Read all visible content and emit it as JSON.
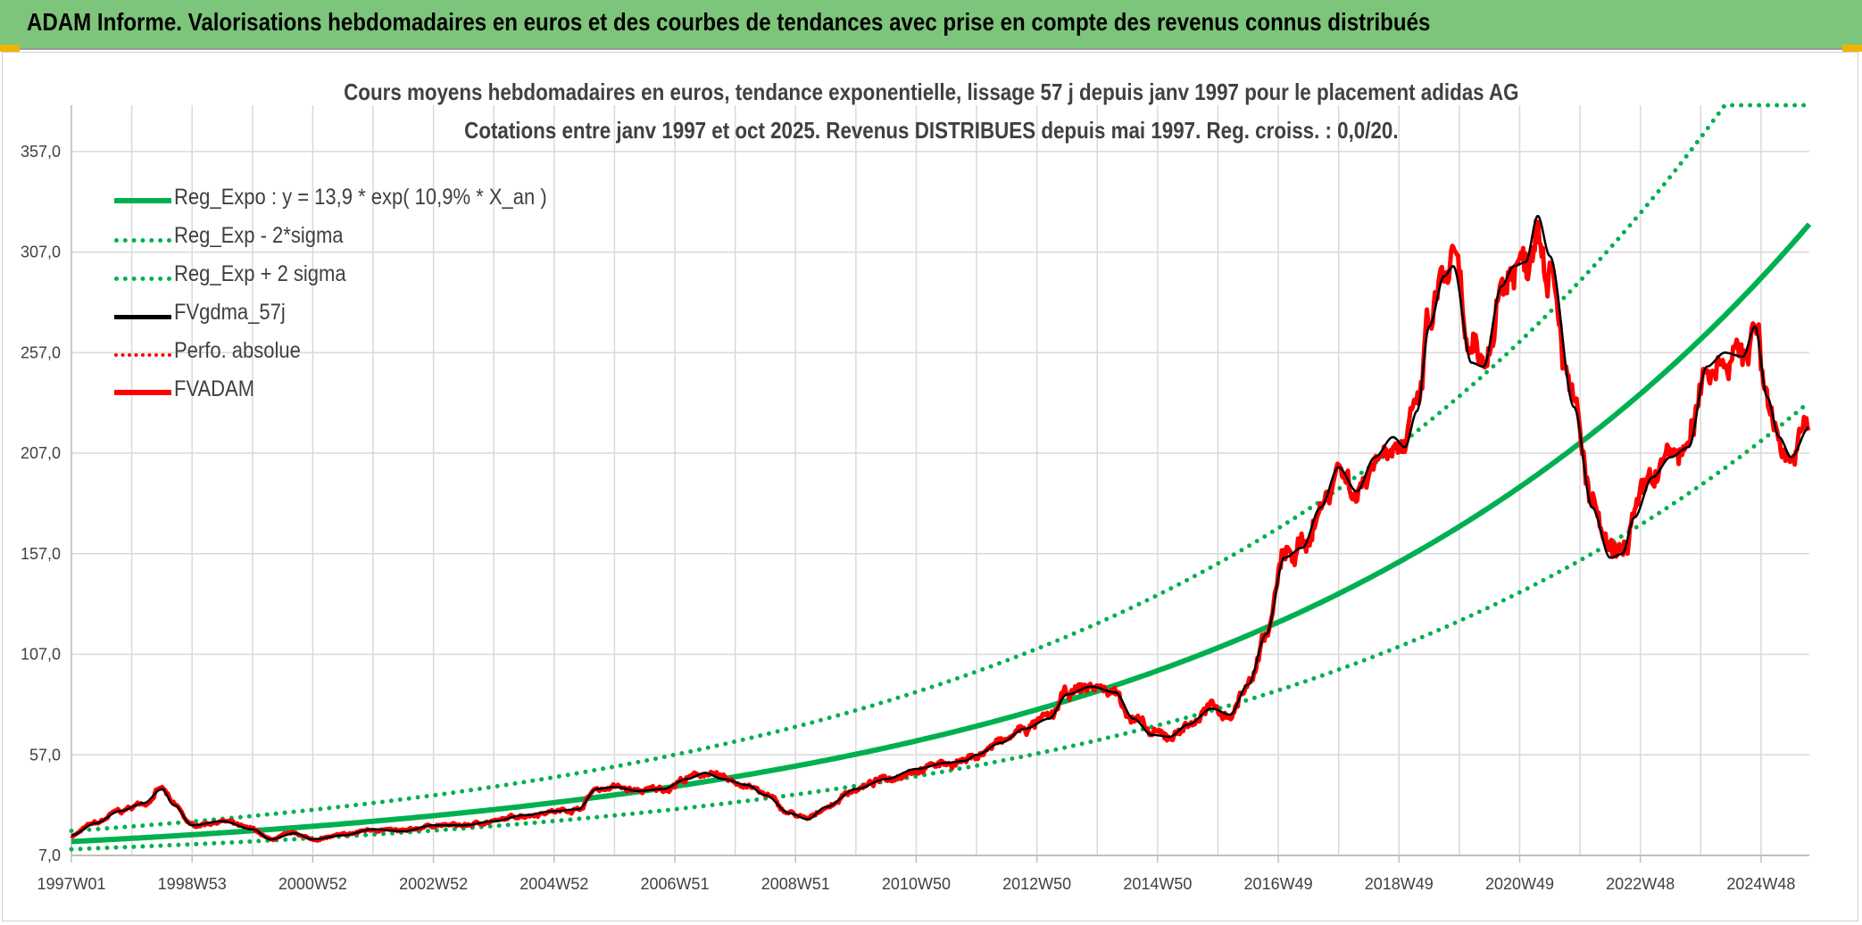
{
  "header": {
    "title": "ADAM Informe. Valorisations hebdomadaires en euros et des courbes de tendances avec prise en compte des revenus connus distribués"
  },
  "colors": {
    "banner": "#7dc57a",
    "reg_expo": "#00b050",
    "fvgdma": "#000000",
    "fvadam": "#ff0000",
    "grid": "#d9d9d9"
  },
  "chart_data": {
    "type": "line",
    "title": "Cours moyens hebdomadaires en euros, tendance exponentielle, lissage 57 j depuis janv 1997 pour le placement adidas AG",
    "subtitle": "Cotations entre janv 1997 et oct 2025. Revenus DISTRIBUES depuis mai 1997. Reg. croiss. : 0,0/20.",
    "xlabel": "",
    "ylabel": "",
    "x_range": [
      1997.0,
      2025.8
    ],
    "ylim": [
      7,
      380
    ],
    "grid": true,
    "legend_position": "top-left",
    "yticks": [
      "7,0",
      "57,0",
      "107,0",
      "157,0",
      "207,0",
      "257,0",
      "307,0",
      "357,0"
    ],
    "ytick_values": [
      7,
      57,
      107,
      157,
      207,
      257,
      307,
      357
    ],
    "xticks": [
      "1997W01",
      "1998W53",
      "2000W52",
      "2002W52",
      "2004W52",
      "2006W51",
      "2008W51",
      "2010W50",
      "2012W50",
      "2014W50",
      "2016W49",
      "2018W49",
      "2020W49",
      "2022W48",
      "2024W48"
    ],
    "xtick_values": [
      1997.0,
      1999.0,
      2001.0,
      2003.0,
      2005.0,
      2007.0,
      2009.0,
      2011.0,
      2013.0,
      2015.0,
      2017.0,
      2019.0,
      2021.0,
      2023.0,
      2025.0
    ],
    "regression": {
      "a": 13.9,
      "r": 0.109,
      "sigma_factor": 1.38,
      "cap_value": 380
    },
    "series": [
      {
        "name": "Reg_Expo : y = 13,9 * exp( 10,9% *  X_an )",
        "style": "solid-thick",
        "color": "#00b050"
      },
      {
        "name": "Reg_Exp - 2*sigma",
        "style": "dotted",
        "color": "#00b050"
      },
      {
        "name": "Reg_Exp + 2 sigma",
        "style": "dotted",
        "color": "#00b050"
      },
      {
        "name": "FVgdma_57j",
        "style": "solid",
        "color": "#000000"
      },
      {
        "name": "Perfo. absolue",
        "style": "dotted",
        "color": "#ff0000"
      },
      {
        "name": "FVADAM",
        "style": "solid-thick",
        "color": "#ff0000"
      }
    ],
    "price_points": {
      "x": [
        1997.0,
        1997.4,
        1997.8,
        1998.2,
        1998.5,
        1998.7,
        1999.0,
        1999.5,
        2000.0,
        2000.3,
        2000.7,
        2001.0,
        2001.5,
        2002.0,
        2002.5,
        2003.0,
        2003.5,
        2004.0,
        2004.5,
        2005.0,
        2005.4,
        2005.7,
        2006.0,
        2006.4,
        2006.8,
        2007.2,
        2007.5,
        2007.8,
        2008.2,
        2008.5,
        2008.9,
        2009.2,
        2009.5,
        2010.0,
        2010.5,
        2011.0,
        2011.5,
        2011.8,
        2012.0,
        2012.4,
        2012.8,
        2013.2,
        2013.5,
        2013.9,
        2014.3,
        2014.6,
        2014.9,
        2015.2,
        2015.5,
        2015.9,
        2016.2,
        2016.5,
        2016.8,
        2017.1,
        2017.4,
        2017.7,
        2018.0,
        2018.3,
        2018.6,
        2018.9,
        2019.1,
        2019.3,
        2019.5,
        2019.75,
        2019.9,
        2020.2,
        2020.4,
        2020.7,
        2020.9,
        2021.1,
        2021.3,
        2021.5,
        2021.9,
        2022.2,
        2022.5,
        2022.7,
        2022.9,
        2023.2,
        2023.5,
        2023.8,
        2024.1,
        2024.4,
        2024.7,
        2024.9,
        2025.1,
        2025.3,
        2025.5,
        2025.8
      ],
      "y": [
        17,
        23,
        29,
        33,
        40,
        32,
        22,
        24,
        20,
        15,
        18,
        15,
        17,
        20,
        19,
        22,
        22,
        24,
        27,
        29,
        30,
        40,
        41,
        39,
        40,
        45,
        48,
        45,
        42,
        37,
        28,
        25,
        31,
        40,
        45,
        50,
        53,
        54,
        57,
        63,
        70,
        75,
        87,
        91,
        88,
        75,
        67,
        66,
        72,
        80,
        77,
        92,
        117,
        155,
        160,
        180,
        200,
        188,
        205,
        215,
        210,
        228,
        270,
        295,
        300,
        252,
        250,
        290,
        300,
        302,
        325,
        305,
        230,
        180,
        155,
        157,
        175,
        195,
        205,
        210,
        250,
        257,
        255,
        270,
        235,
        215,
        205,
        220
      ]
    }
  }
}
